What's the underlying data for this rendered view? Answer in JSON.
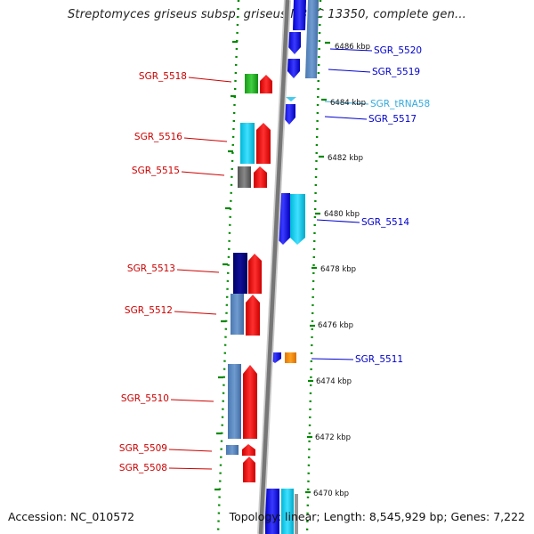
{
  "title": "Streptomyces griseus subsp. griseus NBRC 13350, complete gen...",
  "accession": "Accession: NC_010572",
  "topology": "Topology: linear; Length: 8,545,929 bp; Genes: 7,222",
  "scale_unit": "kbp",
  "scale_labels": [
    "6486 kbp",
    "6484 kbp",
    "6482 kbp",
    "6480 kbp",
    "6478 kbp",
    "6476 kbp",
    "6474 kbp",
    "6472 kbp",
    "6470 kbp"
  ],
  "colors": {
    "left_label": "#cc0000",
    "right_label": "#0000cc",
    "trna_label": "#33aadd",
    "tick": "#008800",
    "axis": "#777777"
  },
  "left_genes": [
    "SGR_5518",
    "SGR_5516",
    "SGR_5515",
    "SGR_5513",
    "SGR_5512",
    "SGR_5510",
    "SGR_5509",
    "SGR_5508"
  ],
  "right_genes": [
    "SGR_5520",
    "SGR_5519",
    "SGR_tRNA58",
    "SGR_5517",
    "SGR_5514",
    "SGR_5511"
  ]
}
